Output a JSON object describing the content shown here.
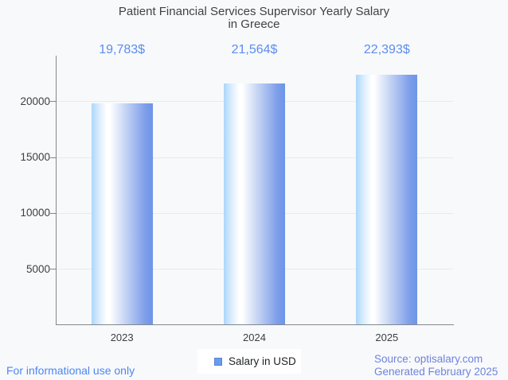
{
  "title": {
    "line1": "Patient Financial Services Supervisor Yearly Salary",
    "line2": "in Greece"
  },
  "chart_data": {
    "type": "bar",
    "title": "Patient Financial Services Supervisor Yearly Salary in Greece",
    "categories": [
      "2023",
      "2024",
      "2025"
    ],
    "values": [
      19783,
      21564,
      22393
    ],
    "value_labels": [
      "19,783$",
      "21,564$",
      "22,393$"
    ],
    "series": [
      {
        "name": "Salary in USD",
        "values": [
          19783,
          21564,
          22393
        ]
      }
    ],
    "yticks": [
      5000,
      10000,
      15000,
      20000
    ],
    "ytick_labels": [
      "5000",
      "10000",
      "15000",
      "20000"
    ],
    "ylim": [
      0,
      24060
    ],
    "xlabel": "",
    "ylabel": "",
    "grid": true,
    "legend_position": "bottom"
  },
  "legend": {
    "label": "Salary in USD",
    "swatch_color": "#6d9ae9"
  },
  "footer": {
    "left": "For informational use only",
    "source": "Source: optisalary.com",
    "generated": "Generated February 2025"
  },
  "colors": {
    "page_background": "#f8f9fb",
    "title_text": "#3f4245",
    "annotation_text": "#5a8def",
    "axis_text": "#3c4043",
    "axis_line": "#83878c",
    "gridline": "#e8eaef",
    "bar_edge_left": "#abd7fb",
    "bar_highlight": "#ffffff",
    "bar_edge_right": "#6c94e8",
    "footer_left_text": "#4c86f3",
    "footer_right_text": "#6e84dc",
    "legend_background": "#ffffff"
  }
}
